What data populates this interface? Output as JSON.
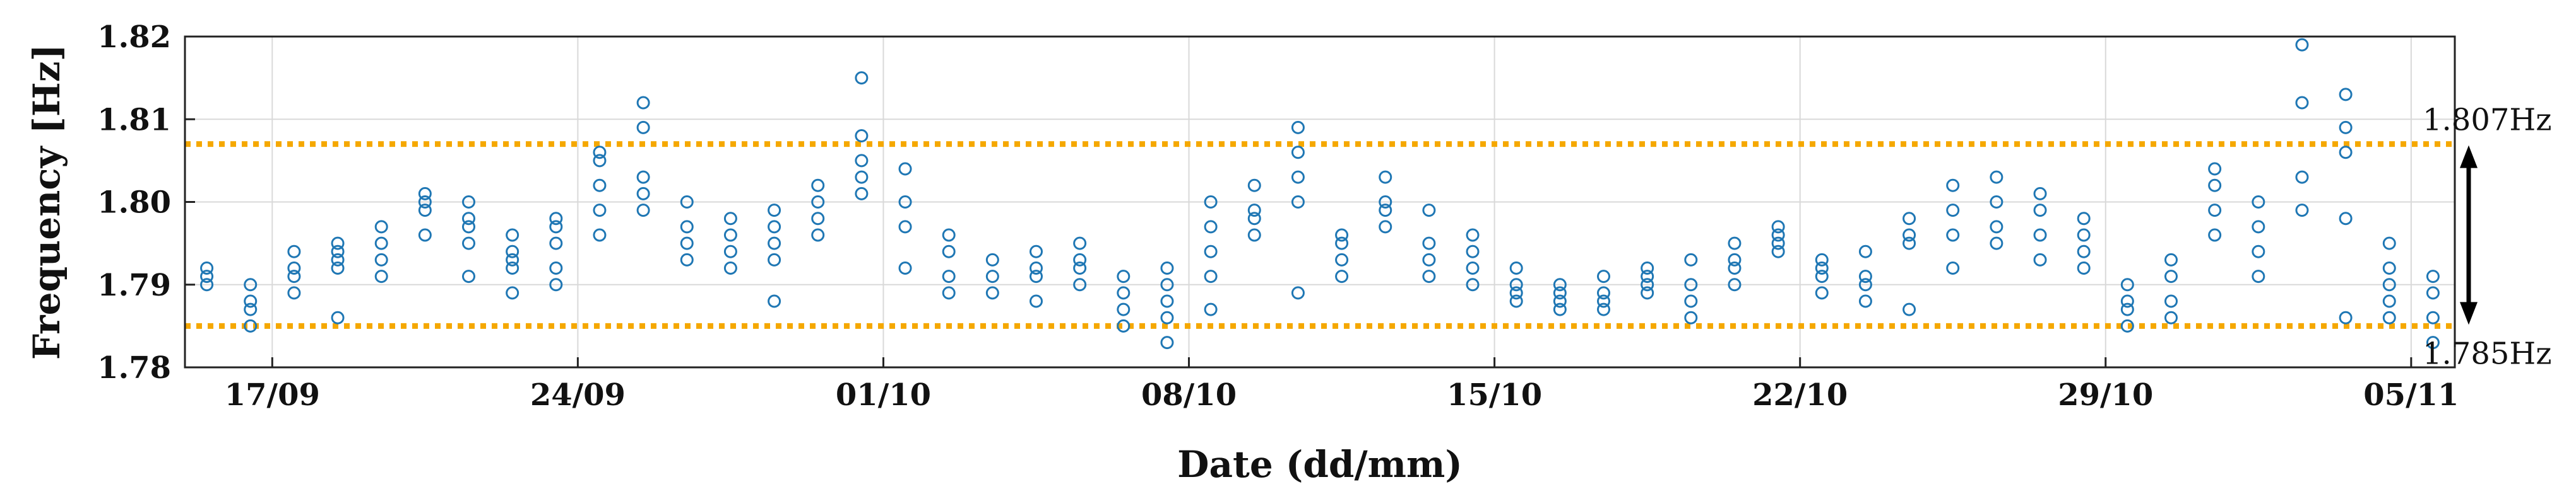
{
  "chart_data": {
    "type": "scatter",
    "xlabel": "Date (dd/mm)",
    "ylabel": "Frequency [Hz]",
    "x_tick_labels": [
      "17/09",
      "24/09",
      "01/10",
      "08/10",
      "15/10",
      "22/10",
      "29/10",
      "05/11"
    ],
    "x_ticks": [
      "2023-09-17",
      "2023-09-24",
      "2023-10-01",
      "2023-10-08",
      "2023-10-15",
      "2023-10-22",
      "2023-10-29",
      "2023-11-05"
    ],
    "xlim": [
      "2023-09-15",
      "2023-11-05"
    ],
    "y_ticks": [
      1.78,
      1.79,
      1.8,
      1.81,
      1.82
    ],
    "y_tick_labels": [
      "1.78",
      "1.79",
      "1.80",
      "1.81",
      "1.82"
    ],
    "ylim": [
      1.78,
      1.82
    ],
    "grid": true,
    "marker": "open-circle",
    "colors": {
      "points": "#1f77b4",
      "threshold": "#f5a800",
      "arrow": "#000000",
      "grid": "#d9d9d9"
    },
    "thresholds": [
      {
        "value": 1.807,
        "label": "1.807Hz"
      },
      {
        "value": 1.785,
        "label": "1.785Hz"
      }
    ],
    "points": [
      [
        "2023-09-15",
        1.792
      ],
      [
        "2023-09-15",
        1.791
      ],
      [
        "2023-09-15",
        1.79
      ],
      [
        "2023-09-16",
        1.788
      ],
      [
        "2023-09-16",
        1.785
      ],
      [
        "2023-09-16",
        1.787
      ],
      [
        "2023-09-16",
        1.79
      ],
      [
        "2023-09-17",
        1.789
      ],
      [
        "2023-09-17",
        1.791
      ],
      [
        "2023-09-17",
        1.792
      ],
      [
        "2023-09-17",
        1.794
      ],
      [
        "2023-09-18",
        1.793
      ],
      [
        "2023-09-18",
        1.795
      ],
      [
        "2023-09-18",
        1.792
      ],
      [
        "2023-09-18",
        1.794
      ],
      [
        "2023-09-18",
        1.786
      ],
      [
        "2023-09-19",
        1.791
      ],
      [
        "2023-09-19",
        1.793
      ],
      [
        "2023-09-19",
        1.795
      ],
      [
        "2023-09-19",
        1.797
      ],
      [
        "2023-09-20",
        1.796
      ],
      [
        "2023-09-20",
        1.799
      ],
      [
        "2023-09-20",
        1.801
      ],
      [
        "2023-09-20",
        1.8
      ],
      [
        "2023-09-21",
        1.798
      ],
      [
        "2023-09-21",
        1.8
      ],
      [
        "2023-09-21",
        1.797
      ],
      [
        "2023-09-21",
        1.795
      ],
      [
        "2023-09-21",
        1.791
      ],
      [
        "2023-09-22",
        1.789
      ],
      [
        "2023-09-22",
        1.792
      ],
      [
        "2023-09-22",
        1.794
      ],
      [
        "2023-09-22",
        1.796
      ],
      [
        "2023-09-22",
        1.793
      ],
      [
        "2023-09-23",
        1.795
      ],
      [
        "2023-09-23",
        1.798
      ],
      [
        "2023-09-23",
        1.797
      ],
      [
        "2023-09-23",
        1.792
      ],
      [
        "2023-09-23",
        1.79
      ],
      [
        "2023-09-24",
        1.796
      ],
      [
        "2023-09-24",
        1.799
      ],
      [
        "2023-09-24",
        1.802
      ],
      [
        "2023-09-24",
        1.805
      ],
      [
        "2023-09-24",
        1.806
      ],
      [
        "2023-09-25",
        1.803
      ],
      [
        "2023-09-25",
        1.801
      ],
      [
        "2023-09-25",
        1.799
      ],
      [
        "2023-09-25",
        1.812
      ],
      [
        "2023-09-25",
        1.809
      ],
      [
        "2023-09-26",
        1.8
      ],
      [
        "2023-09-26",
        1.797
      ],
      [
        "2023-09-26",
        1.795
      ],
      [
        "2023-09-26",
        1.793
      ],
      [
        "2023-09-27",
        1.796
      ],
      [
        "2023-09-27",
        1.798
      ],
      [
        "2023-09-27",
        1.794
      ],
      [
        "2023-09-27",
        1.792
      ],
      [
        "2023-09-28",
        1.795
      ],
      [
        "2023-09-28",
        1.797
      ],
      [
        "2023-09-28",
        1.799
      ],
      [
        "2023-09-28",
        1.793
      ],
      [
        "2023-09-28",
        1.788
      ],
      [
        "2023-09-29",
        1.796
      ],
      [
        "2023-09-29",
        1.798
      ],
      [
        "2023-09-29",
        1.8
      ],
      [
        "2023-09-29",
        1.802
      ],
      [
        "2023-09-30",
        1.803
      ],
      [
        "2023-09-30",
        1.805
      ],
      [
        "2023-09-30",
        1.801
      ],
      [
        "2023-09-30",
        1.815
      ],
      [
        "2023-09-30",
        1.808
      ],
      [
        "2023-10-01",
        1.804
      ],
      [
        "2023-10-01",
        1.8
      ],
      [
        "2023-10-01",
        1.797
      ],
      [
        "2023-10-01",
        1.792
      ],
      [
        "2023-10-02",
        1.789
      ],
      [
        "2023-10-02",
        1.791
      ],
      [
        "2023-10-02",
        1.794
      ],
      [
        "2023-10-02",
        1.796
      ],
      [
        "2023-10-03",
        1.793
      ],
      [
        "2023-10-03",
        1.791
      ],
      [
        "2023-10-03",
        1.789
      ],
      [
        "2023-10-04",
        1.792
      ],
      [
        "2023-10-04",
        1.794
      ],
      [
        "2023-10-04",
        1.791
      ],
      [
        "2023-10-04",
        1.788
      ],
      [
        "2023-10-05",
        1.79
      ],
      [
        "2023-10-05",
        1.793
      ],
      [
        "2023-10-05",
        1.795
      ],
      [
        "2023-10-05",
        1.792
      ],
      [
        "2023-10-06",
        1.787
      ],
      [
        "2023-10-06",
        1.785
      ],
      [
        "2023-10-06",
        1.789
      ],
      [
        "2023-10-06",
        1.791
      ],
      [
        "2023-10-07",
        1.792
      ],
      [
        "2023-10-07",
        1.79
      ],
      [
        "2023-10-07",
        1.788
      ],
      [
        "2023-10-07",
        1.786
      ],
      [
        "2023-10-07",
        1.783
      ],
      [
        "2023-10-08",
        1.787
      ],
      [
        "2023-10-08",
        1.791
      ],
      [
        "2023-10-08",
        1.794
      ],
      [
        "2023-10-08",
        1.797
      ],
      [
        "2023-10-08",
        1.8
      ],
      [
        "2023-10-09",
        1.802
      ],
      [
        "2023-10-09",
        1.799
      ],
      [
        "2023-10-09",
        1.796
      ],
      [
        "2023-10-09",
        1.798
      ],
      [
        "2023-10-10",
        1.8
      ],
      [
        "2023-10-10",
        1.803
      ],
      [
        "2023-10-10",
        1.809
      ],
      [
        "2023-10-10",
        1.806
      ],
      [
        "2023-10-10",
        1.789
      ],
      [
        "2023-10-11",
        1.795
      ],
      [
        "2023-10-11",
        1.793
      ],
      [
        "2023-10-11",
        1.791
      ],
      [
        "2023-10-11",
        1.796
      ],
      [
        "2023-10-12",
        1.799
      ],
      [
        "2023-10-12",
        1.803
      ],
      [
        "2023-10-12",
        1.8
      ],
      [
        "2023-10-12",
        1.797
      ],
      [
        "2023-10-13",
        1.795
      ],
      [
        "2023-10-13",
        1.793
      ],
      [
        "2023-10-13",
        1.791
      ],
      [
        "2023-10-13",
        1.799
      ],
      [
        "2023-10-14",
        1.796
      ],
      [
        "2023-10-14",
        1.794
      ],
      [
        "2023-10-14",
        1.792
      ],
      [
        "2023-10-14",
        1.79
      ],
      [
        "2023-10-15",
        1.789
      ],
      [
        "2023-10-15",
        1.788
      ],
      [
        "2023-10-15",
        1.79
      ],
      [
        "2023-10-15",
        1.792
      ],
      [
        "2023-10-16",
        1.789
      ],
      [
        "2023-10-16",
        1.787
      ],
      [
        "2023-10-16",
        1.788
      ],
      [
        "2023-10-16",
        1.79
      ],
      [
        "2023-10-17",
        1.788
      ],
      [
        "2023-10-17",
        1.787
      ],
      [
        "2023-10-17",
        1.789
      ],
      [
        "2023-10-17",
        1.791
      ],
      [
        "2023-10-18",
        1.789
      ],
      [
        "2023-10-18",
        1.79
      ],
      [
        "2023-10-18",
        1.792
      ],
      [
        "2023-10-18",
        1.791
      ],
      [
        "2023-10-19",
        1.793
      ],
      [
        "2023-10-19",
        1.79
      ],
      [
        "2023-10-19",
        1.788
      ],
      [
        "2023-10-19",
        1.786
      ],
      [
        "2023-10-20",
        1.79
      ],
      [
        "2023-10-20",
        1.793
      ],
      [
        "2023-10-20",
        1.795
      ],
      [
        "2023-10-20",
        1.792
      ],
      [
        "2023-10-21",
        1.794
      ],
      [
        "2023-10-21",
        1.796
      ],
      [
        "2023-10-21",
        1.797
      ],
      [
        "2023-10-21",
        1.795
      ],
      [
        "2023-10-22",
        1.793
      ],
      [
        "2023-10-22",
        1.791
      ],
      [
        "2023-10-22",
        1.789
      ],
      [
        "2023-10-22",
        1.792
      ],
      [
        "2023-10-23",
        1.79
      ],
      [
        "2023-10-23",
        1.788
      ],
      [
        "2023-10-23",
        1.791
      ],
      [
        "2023-10-23",
        1.794
      ],
      [
        "2023-10-24",
        1.796
      ],
      [
        "2023-10-24",
        1.798
      ],
      [
        "2023-10-24",
        1.795
      ],
      [
        "2023-10-24",
        1.787
      ],
      [
        "2023-10-25",
        1.792
      ],
      [
        "2023-10-25",
        1.796
      ],
      [
        "2023-10-25",
        1.799
      ],
      [
        "2023-10-25",
        1.802
      ],
      [
        "2023-10-26",
        1.803
      ],
      [
        "2023-10-26",
        1.8
      ],
      [
        "2023-10-26",
        1.797
      ],
      [
        "2023-10-26",
        1.795
      ],
      [
        "2023-10-27",
        1.799
      ],
      [
        "2023-10-27",
        1.801
      ],
      [
        "2023-10-27",
        1.796
      ],
      [
        "2023-10-27",
        1.793
      ],
      [
        "2023-10-28",
        1.798
      ],
      [
        "2023-10-28",
        1.796
      ],
      [
        "2023-10-28",
        1.794
      ],
      [
        "2023-10-28",
        1.792
      ],
      [
        "2023-10-29",
        1.79
      ],
      [
        "2023-10-29",
        1.788
      ],
      [
        "2023-10-29",
        1.787
      ],
      [
        "2023-10-29",
        1.785
      ],
      [
        "2023-10-30",
        1.786
      ],
      [
        "2023-10-30",
        1.788
      ],
      [
        "2023-10-30",
        1.791
      ],
      [
        "2023-10-30",
        1.793
      ],
      [
        "2023-10-31",
        1.796
      ],
      [
        "2023-10-31",
        1.799
      ],
      [
        "2023-10-31",
        1.802
      ],
      [
        "2023-10-31",
        1.804
      ],
      [
        "2023-11-01",
        1.8
      ],
      [
        "2023-11-01",
        1.797
      ],
      [
        "2023-11-01",
        1.794
      ],
      [
        "2023-11-01",
        1.791
      ],
      [
        "2023-11-02",
        1.803
      ],
      [
        "2023-11-02",
        1.819
      ],
      [
        "2023-11-02",
        1.812
      ],
      [
        "2023-11-02",
        1.799
      ],
      [
        "2023-11-03",
        1.813
      ],
      [
        "2023-11-03",
        1.806
      ],
      [
        "2023-11-03",
        1.798
      ],
      [
        "2023-11-03",
        1.786
      ],
      [
        "2023-11-03",
        1.809
      ],
      [
        "2023-11-04",
        1.795
      ],
      [
        "2023-11-04",
        1.792
      ],
      [
        "2023-11-04",
        1.79
      ],
      [
        "2023-11-04",
        1.788
      ],
      [
        "2023-11-04",
        1.786
      ],
      [
        "2023-11-05",
        1.789
      ],
      [
        "2023-11-05",
        1.791
      ],
      [
        "2023-11-05",
        1.786
      ],
      [
        "2023-11-05",
        1.783
      ]
    ]
  }
}
